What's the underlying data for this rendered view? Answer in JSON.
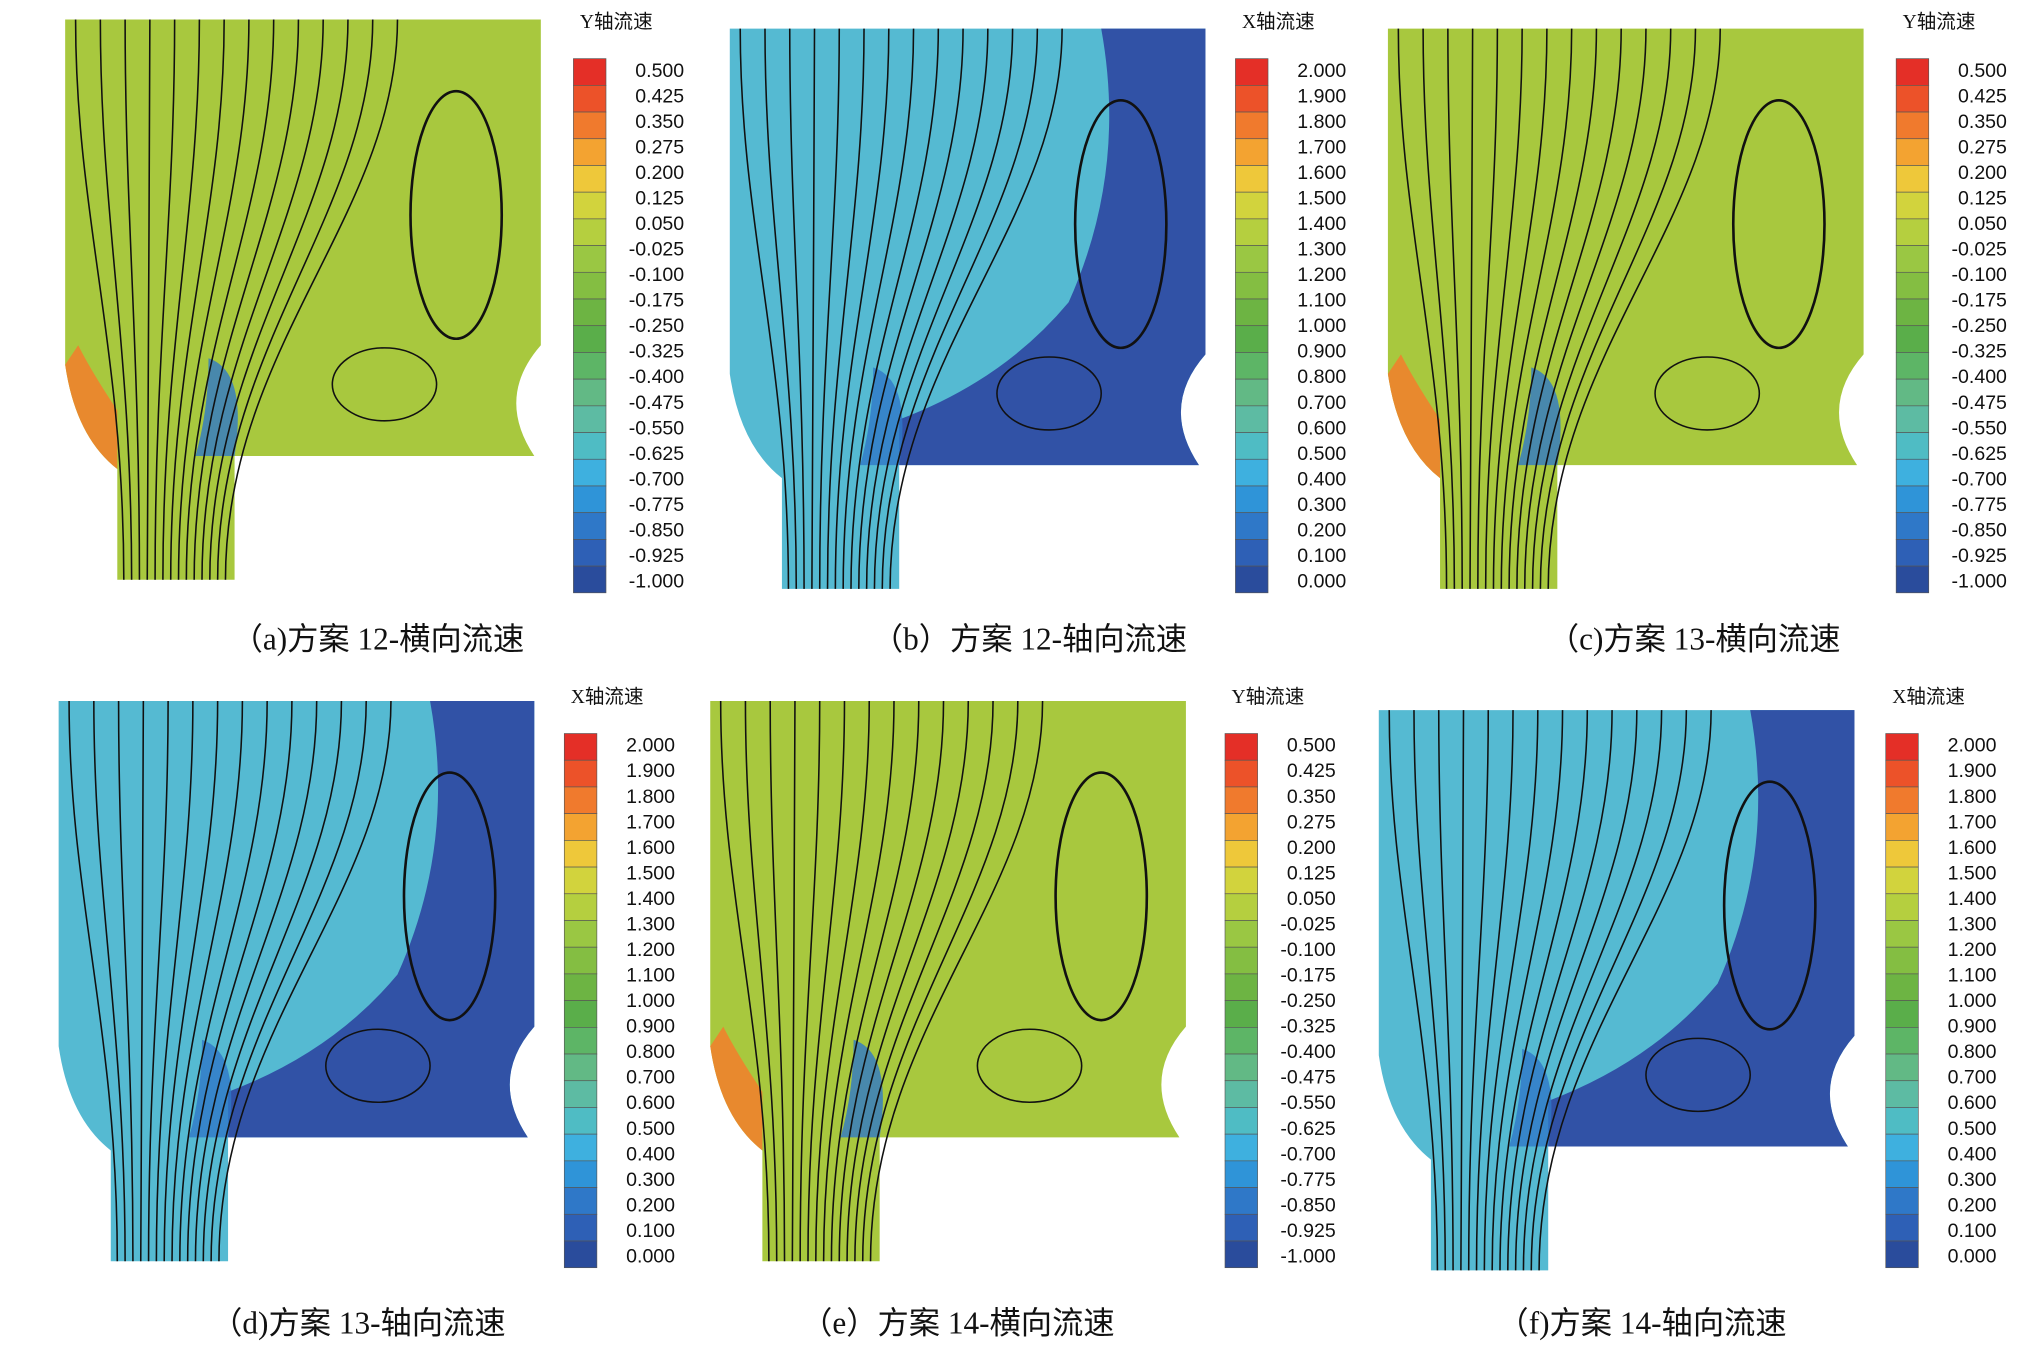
{
  "panels": [
    {
      "legend_title": "Y轴流速",
      "legend_labels": [
        "0.500",
        "0.425",
        "0.350",
        "0.275",
        "0.200",
        "0.125",
        "0.050",
        "-0.025",
        "-0.100",
        "-0.175",
        "-0.250",
        "-0.325",
        "-0.400",
        "-0.475",
        "-0.550",
        "-0.625",
        "-0.700",
        "-0.775",
        "-0.850",
        "-0.925",
        "-1.000"
      ],
      "caption": "（a)方案 12-横向流速"
    },
    {
      "legend_title": "X轴流速",
      "legend_labels": [
        "2.000",
        "1.900",
        "1.800",
        "1.700",
        "1.600",
        "1.500",
        "1.400",
        "1.300",
        "1.200",
        "1.100",
        "1.000",
        "0.900",
        "0.800",
        "0.700",
        "0.600",
        "0.500",
        "0.400",
        "0.300",
        "0.200",
        "0.100",
        "0.000"
      ],
      "caption": "（b）方案 12-轴向流速"
    },
    {
      "legend_title": "Y轴流速",
      "legend_labels": [
        "0.500",
        "0.425",
        "0.350",
        "0.275",
        "0.200",
        "0.125",
        "0.050",
        "-0.025",
        "-0.100",
        "-0.175",
        "-0.250",
        "-0.325",
        "-0.400",
        "-0.475",
        "-0.550",
        "-0.625",
        "-0.700",
        "-0.775",
        "-0.850",
        "-0.925",
        "-1.000"
      ],
      "caption": "（c)方案 13-横向流速"
    },
    {
      "legend_title": "X轴流速",
      "legend_labels": [
        "2.000",
        "1.900",
        "1.800",
        "1.700",
        "1.600",
        "1.500",
        "1.400",
        "1.300",
        "1.200",
        "1.100",
        "1.000",
        "0.900",
        "0.800",
        "0.700",
        "0.600",
        "0.500",
        "0.400",
        "0.300",
        "0.200",
        "0.100",
        "0.000"
      ],
      "caption": "（d)方案 13-轴向流速"
    },
    {
      "legend_title": "Y轴流速",
      "legend_labels": [
        "0.500",
        "0.425",
        "0.350",
        "0.275",
        "0.200",
        "0.125",
        "0.050",
        "-0.025",
        "-0.100",
        "-0.175",
        "-0.250",
        "-0.325",
        "-0.400",
        "-0.475",
        "-0.550",
        "-0.625",
        "-0.700",
        "-0.775",
        "-0.850",
        "-0.925",
        "-1.000"
      ],
      "caption": "（e）方案 14-横向流速"
    },
    {
      "legend_title": "X轴流速",
      "legend_labels": [
        "2.000",
        "1.900",
        "1.800",
        "1.700",
        "1.600",
        "1.500",
        "1.400",
        "1.300",
        "1.200",
        "1.100",
        "1.000",
        "0.900",
        "0.800",
        "0.700",
        "0.600",
        "0.500",
        "0.400",
        "0.300",
        "0.200",
        "0.100",
        "0.000"
      ],
      "caption": "（f)方案 14-轴向流速"
    }
  ]
}
